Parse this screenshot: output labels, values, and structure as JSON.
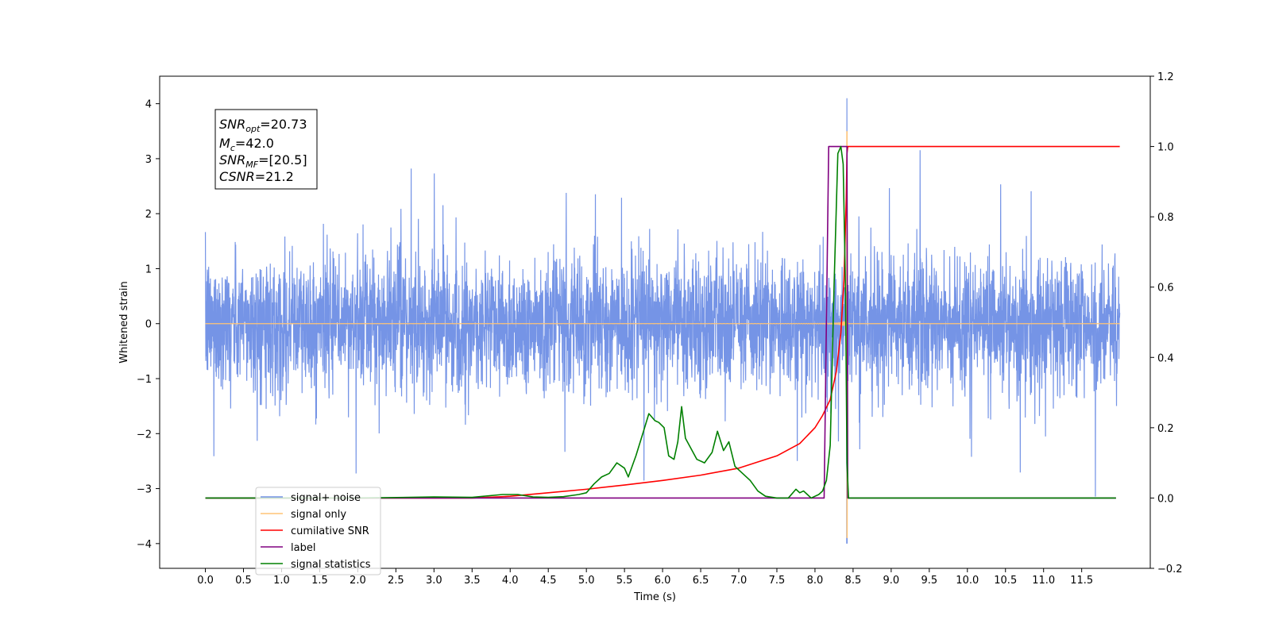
{
  "chart_data": {
    "type": "line",
    "xlabel": "Time (s)",
    "ylabel": "Whitened strain",
    "xlim": [
      -0.6,
      12.4
    ],
    "ylim": [
      -4.45,
      4.5
    ],
    "y2lim": [
      -0.2,
      1.2
    ],
    "x_ticks": [
      "0.0",
      "0.5",
      "1.0",
      "1.5",
      "2.0",
      "2.5",
      "3.0",
      "3.5",
      "4.0",
      "4.5",
      "5.0",
      "5.5",
      "6.0",
      "6.5",
      "7.0",
      "7.5",
      "8.0",
      "8.5",
      "9.0",
      "9.5",
      "10.0",
      "10.5",
      "11.0",
      "11.5"
    ],
    "y_ticks": [
      "4",
      "3",
      "2",
      "1",
      "0",
      "−1",
      "−2",
      "−3",
      "−4"
    ],
    "y2_ticks": [
      "1.2",
      "1.0",
      "0.8",
      "0.6",
      "0.4",
      "0.2",
      "0.0",
      "−0.2"
    ],
    "grid": false,
    "legend_position": "lower-left",
    "annotation": {
      "snr_opt": {
        "base": "SNR",
        "sub": "opt",
        "value": "=20.73"
      },
      "mc": {
        "base": "M",
        "sub": "c",
        "value": "=42.0"
      },
      "snr_mf": {
        "base": "SNR",
        "sub": "MF",
        "value": "=[20.5]"
      },
      "csnr": {
        "base": "CSNR",
        "value": "=21.2"
      }
    },
    "series": [
      {
        "name": "signal+ noise",
        "color": "#7594e6",
        "axis": "left",
        "kind": "noise",
        "t_start": 0.0,
        "t_end": 12.0,
        "noise_std": 0.6,
        "merger_time": 8.42,
        "merger_peak": 4.1,
        "merger_trough": -4.0
      },
      {
        "name": "signal only",
        "color": "#ffc476",
        "axis": "left",
        "kind": "chirp",
        "t_start": 0.0,
        "t_end": 12.0,
        "merger_time": 8.42,
        "peak_amplitude": 3.5
      },
      {
        "name": "cumilative SNR",
        "color": "#ff0000",
        "axis": "right",
        "x": [
          0.0,
          3.5,
          4.0,
          4.5,
          5.0,
          5.5,
          6.0,
          6.5,
          7.0,
          7.5,
          7.8,
          8.0,
          8.1,
          8.2,
          8.28,
          8.34,
          8.38,
          8.41,
          8.42,
          8.43,
          12.0
        ],
        "y": [
          0.0,
          0.0,
          0.005,
          0.015,
          0.025,
          0.037,
          0.05,
          0.065,
          0.085,
          0.12,
          0.155,
          0.2,
          0.235,
          0.28,
          0.36,
          0.47,
          0.62,
          0.85,
          0.98,
          1.0,
          1.0
        ]
      },
      {
        "name": "label",
        "color": "#800080",
        "axis": "right",
        "x": [
          0.0,
          8.12,
          8.18,
          8.42,
          8.43,
          11.95
        ],
        "y": [
          0.0,
          0.0,
          1.0,
          1.0,
          0.0,
          0.0
        ]
      },
      {
        "name": "signal statistics",
        "color": "#008000",
        "axis": "right",
        "x": [
          0.0,
          2.0,
          3.0,
          3.5,
          3.9,
          4.1,
          4.3,
          4.5,
          4.7,
          4.9,
          5.0,
          5.1,
          5.2,
          5.3,
          5.4,
          5.5,
          5.55,
          5.65,
          5.75,
          5.82,
          5.9,
          5.95,
          6.02,
          6.08,
          6.15,
          6.2,
          6.25,
          6.3,
          6.35,
          6.45,
          6.55,
          6.65,
          6.72,
          6.8,
          6.87,
          6.95,
          7.05,
          7.15,
          7.25,
          7.35,
          7.5,
          7.65,
          7.75,
          7.8,
          7.85,
          7.9,
          7.95,
          8.0,
          8.05,
          8.1,
          8.15,
          8.2,
          8.25,
          8.3,
          8.34,
          8.37,
          8.4,
          8.42,
          8.44,
          8.5,
          11.95
        ],
        "y": [
          0.0,
          0.0,
          0.003,
          0.002,
          0.01,
          0.01,
          0.003,
          0.002,
          0.004,
          0.01,
          0.015,
          0.04,
          0.06,
          0.07,
          0.1,
          0.085,
          0.06,
          0.12,
          0.19,
          0.24,
          0.22,
          0.215,
          0.2,
          0.12,
          0.11,
          0.16,
          0.26,
          0.17,
          0.15,
          0.11,
          0.1,
          0.13,
          0.19,
          0.135,
          0.16,
          0.09,
          0.07,
          0.05,
          0.02,
          0.005,
          0.0,
          0.0,
          0.025,
          0.015,
          0.02,
          0.01,
          0.0,
          0.005,
          0.01,
          0.02,
          0.05,
          0.15,
          0.6,
          0.98,
          1.0,
          0.95,
          0.6,
          0.1,
          0.0,
          0.0,
          0.0
        ]
      }
    ]
  }
}
